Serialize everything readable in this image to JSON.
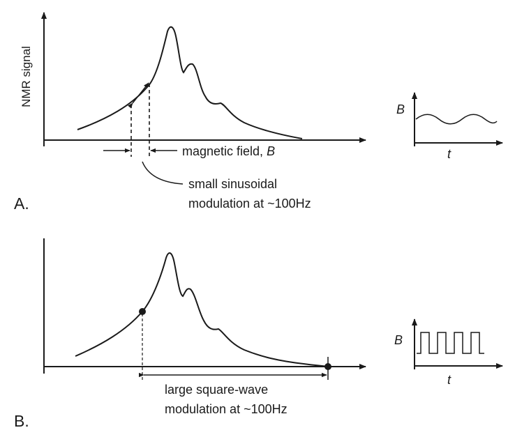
{
  "panelA": {
    "panel_label": "A.",
    "y_axis_label": "NMR signal",
    "x_axis_label": "magnetic field, ",
    "x_axis_symbol": "B",
    "annotation_line1": "small sinusoidal",
    "annotation_line2": "modulation at ~100Hz",
    "inset_y_label": "B",
    "inset_x_label": "t"
  },
  "panelB": {
    "panel_label": "B.",
    "annotation_line1": "large square-wave",
    "annotation_line2": "modulation at ~100Hz",
    "inset_y_label": "B",
    "inset_x_label": "t"
  },
  "colors": {
    "ink": "#1a1a1a",
    "background": "#ffffff"
  }
}
